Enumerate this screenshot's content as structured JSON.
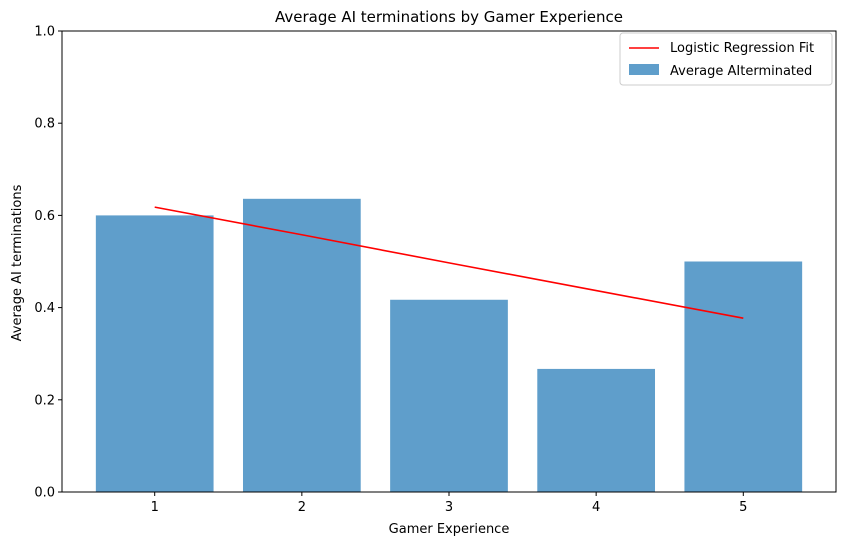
{
  "chart_data": {
    "type": "bar",
    "title": "Average AI terminations by Gamer Experience",
    "xlabel": "Gamer Experience",
    "ylabel": "Average AI terminations",
    "categories": [
      "1",
      "2",
      "3",
      "4",
      "5"
    ],
    "x": [
      1,
      2,
      3,
      4,
      5
    ],
    "ylim": [
      0,
      1
    ],
    "yticks": [
      "0.0",
      "0.2",
      "0.4",
      "0.6",
      "0.8",
      "1.0"
    ],
    "grid": false,
    "legend_position": "top-right",
    "series": [
      {
        "name": "Average AIterminated",
        "type": "bar",
        "color": "#5f9ecb",
        "values": [
          0.6,
          0.636,
          0.417,
          0.267,
          0.5
        ]
      },
      {
        "name": "Logistic Regression Fit",
        "type": "line",
        "color": "#ff0000",
        "values": [
          0.618,
          0.558,
          0.497,
          0.437,
          0.377
        ]
      }
    ]
  }
}
